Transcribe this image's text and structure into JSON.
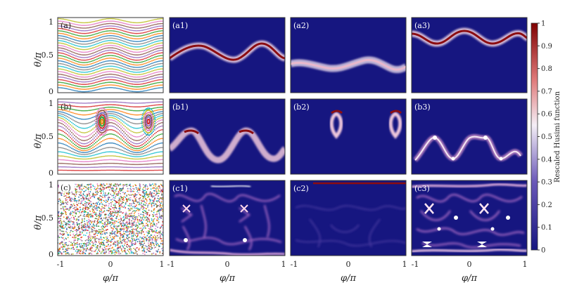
{
  "figure": {
    "xlabel": "φ/π",
    "ylabel": "θ/π",
    "xticks": [
      "-1",
      "0",
      "1"
    ],
    "yticks": [
      "0",
      "0.5",
      "1"
    ],
    "colorbar": {
      "label": "Rescaled Husimi function",
      "ticks": [
        "0",
        "0.1",
        "0.2",
        "0.3",
        "0.4",
        "0.5",
        "0.6",
        "0.7",
        "0.8",
        "0.9",
        "1"
      ],
      "range": [
        0,
        1
      ],
      "colors": [
        "#161680",
        "#ffffff",
        "#7f0000"
      ]
    },
    "panel_labels": {
      "a": "(a)",
      "a1": "(a1)",
      "a2": "(a2)",
      "a3": "(a3)",
      "b": "(b)",
      "b1": "(b1)",
      "b2": "(b2)",
      "b3": "(b3)",
      "c": "(c)",
      "c1": "(c1)",
      "c2": "(c2)",
      "c3": "(c3)"
    },
    "colors": {
      "background": "#161680",
      "ridge_core": "#8b0d12",
      "ridge_glow": "#ffffff",
      "scatter": [
        "#1f77b4",
        "#ff7f0e",
        "#2ca02c",
        "#d62728",
        "#9467bd",
        "#8c564b",
        "#e377c2",
        "#bcbd22",
        "#17becf",
        "#7f7f7f"
      ]
    }
  },
  "chart_data": [
    {
      "panel": "a",
      "type": "scatter",
      "xlim": [
        -1,
        1
      ],
      "ylim": [
        0,
        1
      ]
    },
    {
      "panel": "a1",
      "type": "heatmap",
      "xlim": [
        -1,
        1
      ],
      "ylim": [
        0,
        1
      ]
    },
    {
      "panel": "a2",
      "type": "heatmap",
      "xlim": [
        -1,
        1
      ],
      "ylim": [
        0,
        1
      ]
    },
    {
      "panel": "a3",
      "type": "heatmap",
      "xlim": [
        -1,
        1
      ],
      "ylim": [
        0,
        1
      ]
    },
    {
      "panel": "b",
      "type": "scatter",
      "xlim": [
        -1,
        1
      ],
      "ylim": [
        0,
        1
      ]
    },
    {
      "panel": "b1",
      "type": "heatmap",
      "xlim": [
        -1,
        1
      ],
      "ylim": [
        0,
        1
      ]
    },
    {
      "panel": "b2",
      "type": "heatmap",
      "xlim": [
        -1,
        1
      ],
      "ylim": [
        0,
        1
      ]
    },
    {
      "panel": "b3",
      "type": "heatmap",
      "xlim": [
        -1,
        1
      ],
      "ylim": [
        0,
        1
      ]
    },
    {
      "panel": "c",
      "type": "scatter",
      "xlim": [
        -1,
        1
      ],
      "ylim": [
        0,
        1
      ]
    },
    {
      "panel": "c1",
      "type": "heatmap",
      "xlim": [
        -1,
        1
      ],
      "ylim": [
        0,
        1
      ]
    },
    {
      "panel": "c2",
      "type": "heatmap",
      "xlim": [
        -1,
        1
      ],
      "ylim": [
        0,
        1
      ]
    },
    {
      "panel": "c3",
      "type": "heatmap",
      "xlim": [
        -1,
        1
      ],
      "ylim": [
        0,
        1
      ]
    }
  ]
}
